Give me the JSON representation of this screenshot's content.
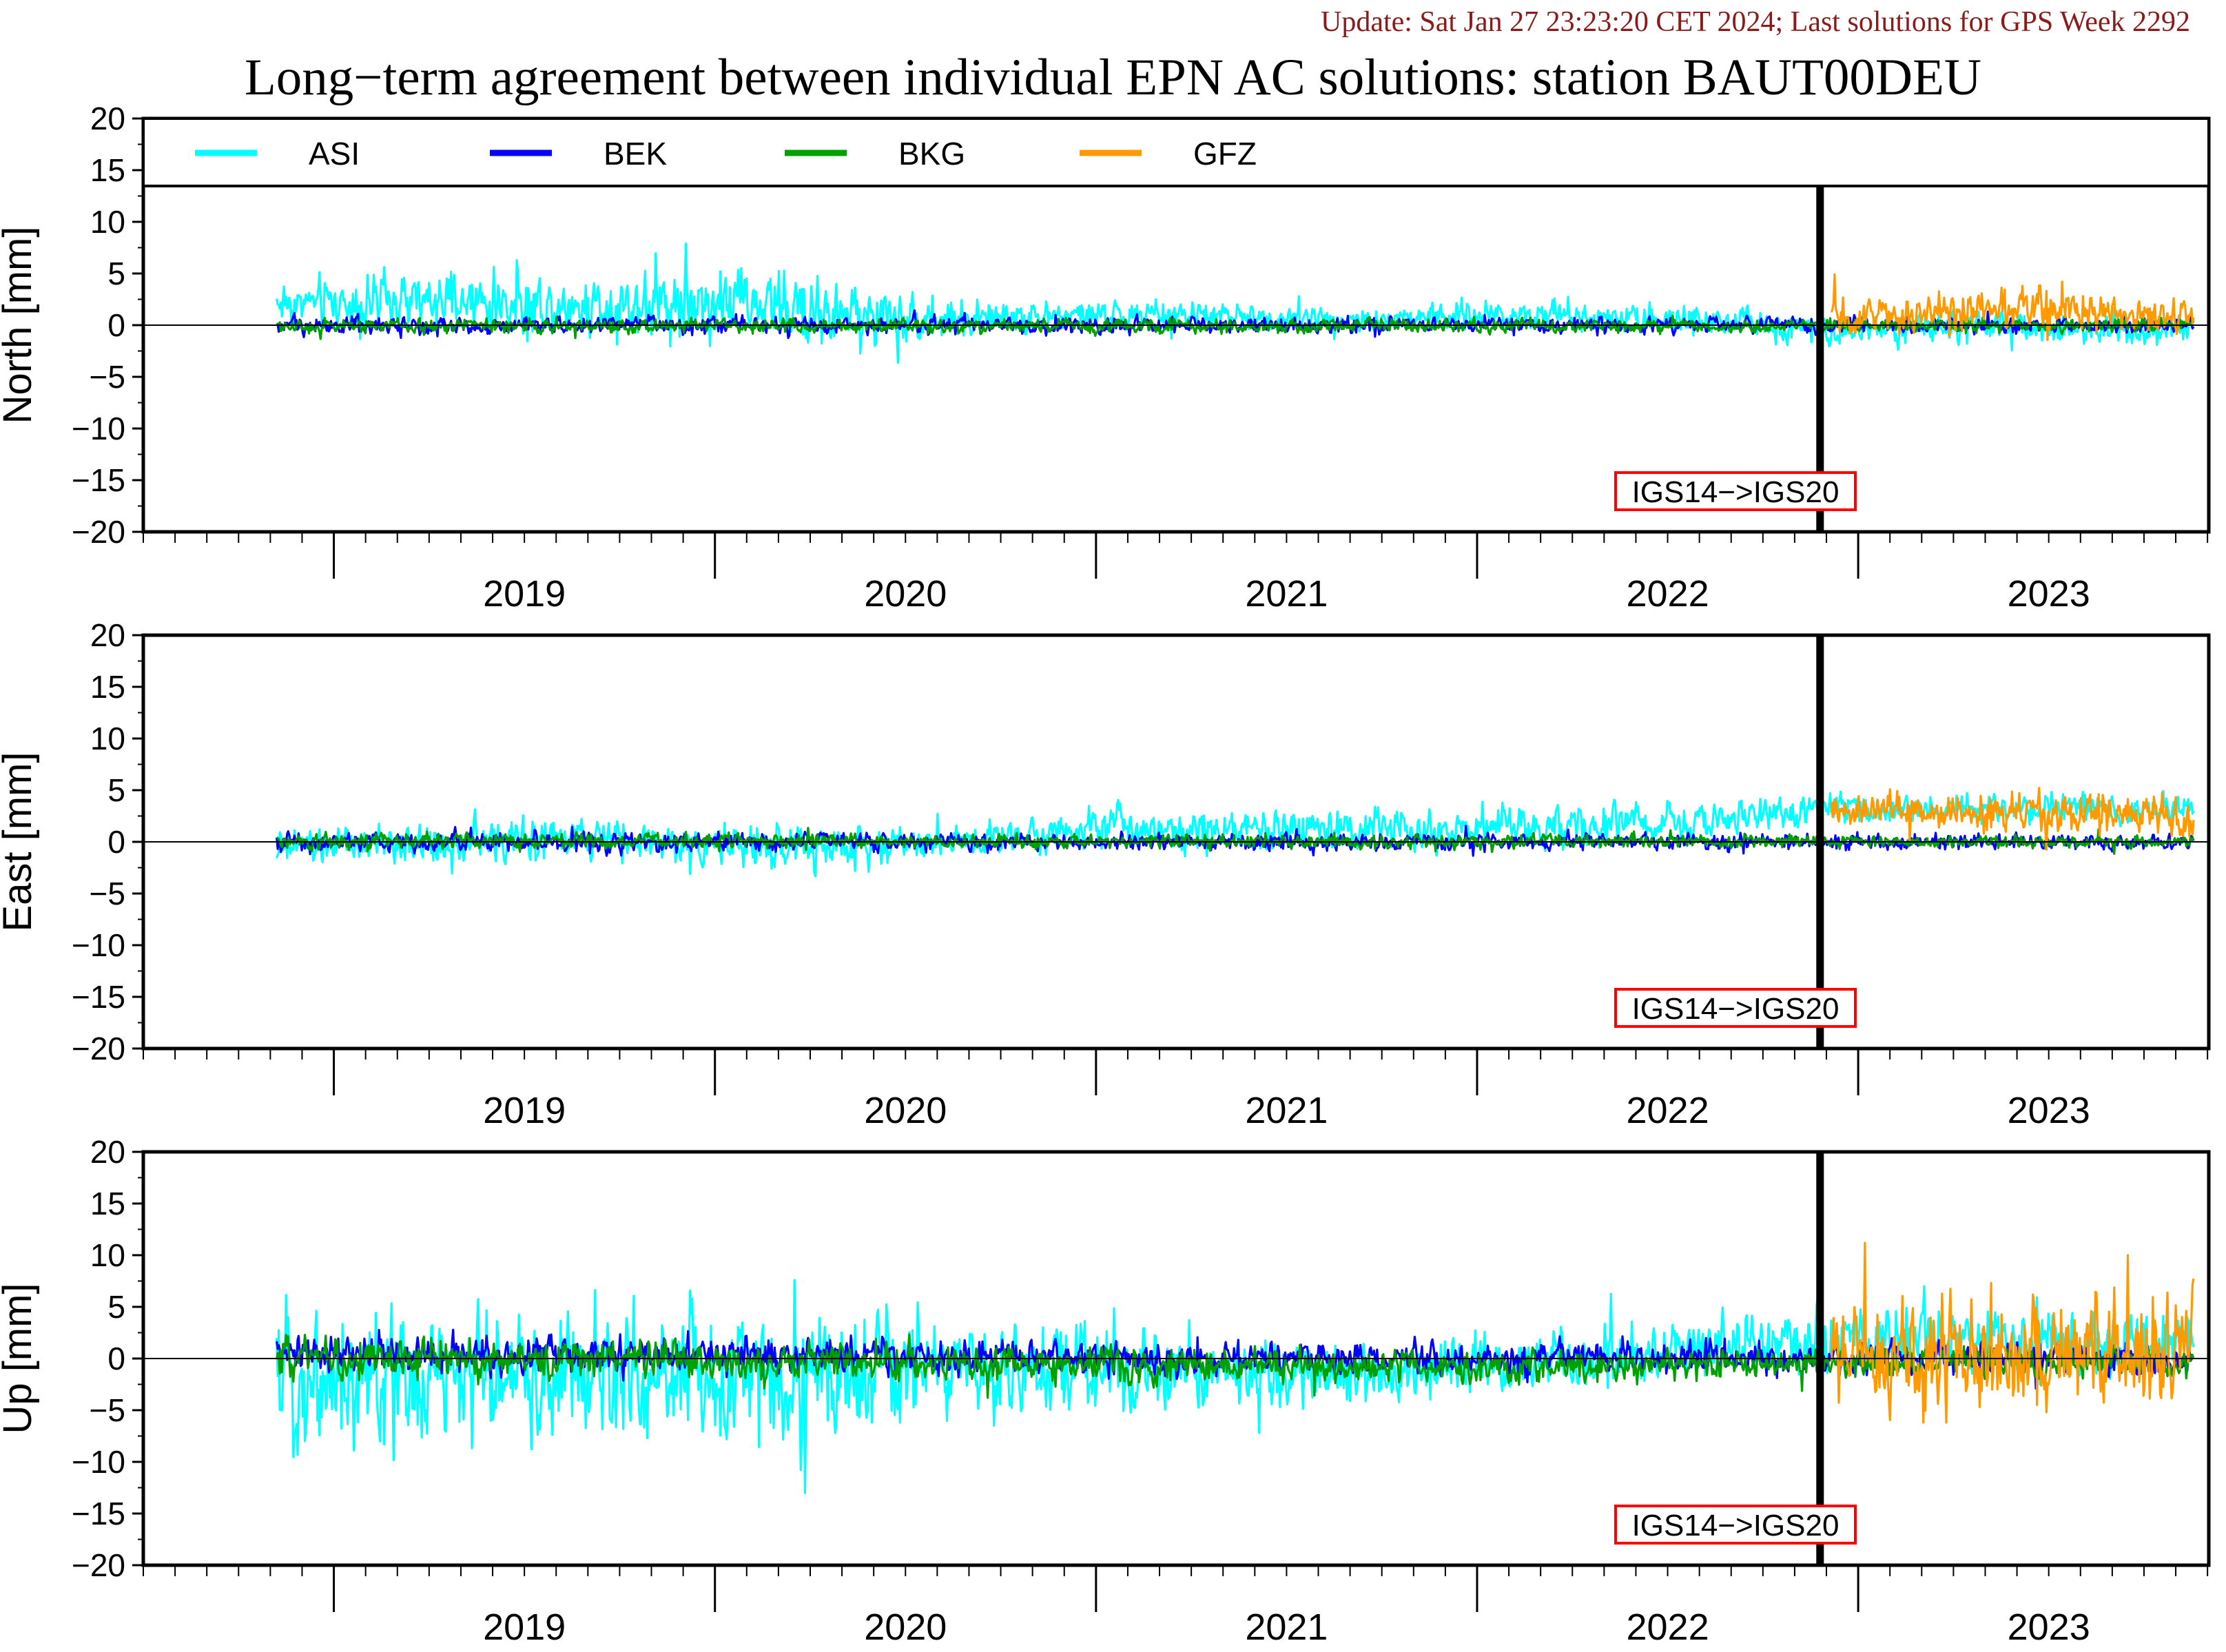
{
  "update_text": "Update: Sat Jan 27 23:23:20 CET 2024; Last solutions for GPS Week 2292",
  "title": "Long−term agreement between individual EPN AC solutions: station BAUT00DEU",
  "legend": [
    {
      "name": "ASI",
      "color": "#00ffff"
    },
    {
      "name": "BEK",
      "color": "#0000ff"
    },
    {
      "name": "BKG",
      "color": "#00a000"
    },
    {
      "name": "GFZ",
      "color": "#ff9900"
    }
  ],
  "frame_change_label": "IGS14−>IGS20",
  "frame_change_year": 2022.9,
  "chart_data": [
    {
      "type": "line",
      "ylabel": "North [mm]",
      "ylim": [
        -20,
        20
      ],
      "yticks": [
        20,
        15,
        10,
        5,
        0,
        -5,
        -10,
        -15,
        -20
      ],
      "xlim": [
        2018.5,
        2023.92
      ],
      "xticks": [
        "2019",
        "2020",
        "2021",
        "2022",
        "2023"
      ],
      "series": [
        {
          "name": "ASI",
          "color": "#00ffff",
          "x_start": 2018.85,
          "x_end": 2023.88,
          "levels": [
            [
              2018.85,
              2.2,
              2.0
            ],
            [
              2019.75,
              2.0,
              2.5
            ],
            [
              2020.0,
              2.5,
              3.0
            ],
            [
              2020.4,
              0.8,
              2.5
            ],
            [
              2020.6,
              0.6,
              1.5
            ],
            [
              2021.0,
              1.0,
              1.2
            ],
            [
              2021.7,
              0.6,
              1.0
            ],
            [
              2022.2,
              1.2,
              1.2
            ],
            [
              2022.9,
              -0.3,
              1.2
            ],
            [
              2023.88,
              -0.3,
              1.2
            ]
          ]
        },
        {
          "name": "BEK",
          "color": "#0000ff",
          "x_start": 2018.85,
          "x_end": 2023.88,
          "levels": [
            [
              2018.85,
              0.0,
              0.7
            ],
            [
              2023.88,
              0.0,
              0.6
            ]
          ]
        },
        {
          "name": "BKG",
          "color": "#00a000",
          "x_start": 2018.85,
          "x_end": 2023.88,
          "levels": [
            [
              2018.85,
              -0.1,
              0.6
            ],
            [
              2023.88,
              0.0,
              0.5
            ]
          ]
        },
        {
          "name": "GFZ",
          "color": "#ff9900",
          "x_start": 2022.93,
          "x_end": 2023.88,
          "levels": [
            [
              2022.93,
              0.8,
              1.3
            ],
            [
              2023.5,
              1.6,
              1.8
            ],
            [
              2023.88,
              0.8,
              1.3
            ]
          ]
        }
      ]
    },
    {
      "type": "line",
      "ylabel": "East [mm]",
      "ylim": [
        -20,
        20
      ],
      "yticks": [
        20,
        15,
        10,
        5,
        0,
        -5,
        -10,
        -15,
        -20
      ],
      "xlim": [
        2018.5,
        2023.92
      ],
      "xticks": [
        "2019",
        "2020",
        "2021",
        "2022",
        "2023"
      ],
      "series": [
        {
          "name": "ASI",
          "color": "#00ffff",
          "x_start": 2018.85,
          "x_end": 2023.88,
          "levels": [
            [
              2018.85,
              -0.6,
              1.6
            ],
            [
              2019.7,
              0.3,
              1.5
            ],
            [
              2020.2,
              -0.8,
              1.8
            ],
            [
              2020.55,
              0.0,
              1.3
            ],
            [
              2021.0,
              1.5,
              1.6
            ],
            [
              2021.6,
              1.3,
              1.6
            ],
            [
              2022.4,
              1.5,
              1.6
            ],
            [
              2022.9,
              3.2,
              1.3
            ],
            [
              2023.88,
              3.2,
              1.2
            ]
          ]
        },
        {
          "name": "BEK",
          "color": "#0000ff",
          "x_start": 2018.85,
          "x_end": 2023.88,
          "levels": [
            [
              2018.85,
              0.0,
              0.8
            ],
            [
              2023.88,
              0.0,
              0.6
            ]
          ]
        },
        {
          "name": "BKG",
          "color": "#00a000",
          "x_start": 2018.85,
          "x_end": 2023.88,
          "levels": [
            [
              2018.85,
              0.1,
              0.6
            ],
            [
              2023.88,
              0.0,
              0.5
            ]
          ]
        },
        {
          "name": "GFZ",
          "color": "#ff9900",
          "x_start": 2022.93,
          "x_end": 2023.88,
          "levels": [
            [
              2022.93,
              3.0,
              1.4
            ],
            [
              2023.88,
              2.5,
              1.6
            ]
          ]
        }
      ]
    },
    {
      "type": "line",
      "ylabel": "Up [mm]",
      "ylim": [
        -20,
        20
      ],
      "yticks": [
        20,
        15,
        10,
        5,
        0,
        -5,
        -10,
        -15,
        -20
      ],
      "xlim": [
        2018.5,
        2023.92
      ],
      "xticks": [
        "2019",
        "2020",
        "2021",
        "2022",
        "2023"
      ],
      "series": [
        {
          "name": "ASI",
          "color": "#00ffff",
          "x_start": 2018.85,
          "x_end": 2023.88,
          "levels": [
            [
              2018.85,
              -2.0,
              5.5
            ],
            [
              2020.4,
              -1.5,
              5.0
            ],
            [
              2020.6,
              -0.8,
              3.5
            ],
            [
              2021.0,
              -1.0,
              3.5
            ],
            [
              2021.6,
              -1.8,
              2.5
            ],
            [
              2022.2,
              0.0,
              2.2
            ],
            [
              2022.9,
              1.5,
              2.5
            ],
            [
              2023.88,
              1.5,
              2.5
            ]
          ]
        },
        {
          "name": "BEK",
          "color": "#0000ff",
          "x_start": 2018.85,
          "x_end": 2023.88,
          "levels": [
            [
              2018.85,
              0.5,
              1.5
            ],
            [
              2021.5,
              0.0,
              1.3
            ],
            [
              2023.88,
              0.0,
              1.3
            ]
          ]
        },
        {
          "name": "BKG",
          "color": "#00a000",
          "x_start": 2018.85,
          "x_end": 2023.88,
          "levels": [
            [
              2018.85,
              0.3,
              1.6
            ],
            [
              2021.5,
              -0.8,
              1.3
            ],
            [
              2023.88,
              -0.3,
              1.2
            ]
          ]
        },
        {
          "name": "GFZ",
          "color": "#ff9900",
          "x_start": 2022.93,
          "x_end": 2023.88,
          "levels": [
            [
              2022.93,
              0.5,
              4.2
            ],
            [
              2023.88,
              0.8,
              4.5
            ]
          ]
        }
      ]
    }
  ]
}
